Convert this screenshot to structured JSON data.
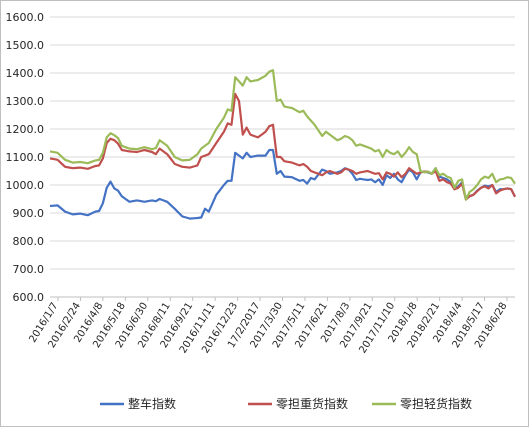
{
  "chart_data": {
    "type": "line",
    "title": "",
    "xlabel": "",
    "ylabel": "",
    "ylim": [
      600,
      1600
    ],
    "yticks": [
      "600.0",
      "700.0",
      "800.0",
      "900.0",
      "1000.0",
      "1100.0",
      "1200.0",
      "1300.0",
      "1400.0",
      "1500.0",
      "1600.0"
    ],
    "grid": "horizontal",
    "legend_position": "bottom",
    "x_tick_labels": [
      "2016/1/7",
      "2016/2/24",
      "2016/4/8",
      "2016/5/18",
      "2016/6/30",
      "2016/8/11",
      "2016/9/21",
      "2016/11/11",
      "2016/12/23",
      "17/2/2017",
      "2017/3/30",
      "2017/5/11",
      "2017/6/21",
      "2017/8/3",
      "2017/9/21",
      "2017/11/10",
      "2018/1/8",
      "2018/2/21",
      "2018/4/4",
      "2018/5/17",
      "2018/6/28"
    ],
    "n_points": 124,
    "series": [
      {
        "name": "整车指数",
        "color": "#4472c4",
        "anchors": [
          [
            0,
            925
          ],
          [
            2,
            927
          ],
          [
            4,
            905
          ],
          [
            6,
            895
          ],
          [
            8,
            898
          ],
          [
            10,
            892
          ],
          [
            12,
            905
          ],
          [
            13,
            907
          ],
          [
            14,
            935
          ],
          [
            15,
            990
          ],
          [
            16,
            1012
          ],
          [
            17,
            988
          ],
          [
            18,
            980
          ],
          [
            19,
            960
          ],
          [
            20,
            950
          ],
          [
            21,
            940
          ],
          [
            23,
            945
          ],
          [
            25,
            940
          ],
          [
            27,
            945
          ],
          [
            28,
            942
          ],
          [
            29,
            950
          ],
          [
            31,
            940
          ],
          [
            33,
            915
          ],
          [
            35,
            888
          ],
          [
            37,
            880
          ],
          [
            39,
            882
          ],
          [
            40,
            884
          ],
          [
            41,
            915
          ],
          [
            42,
            905
          ],
          [
            44,
            965
          ],
          [
            46,
            1000
          ],
          [
            47,
            1015
          ],
          [
            48,
            1015
          ],
          [
            49,
            1115
          ],
          [
            50,
            1105
          ],
          [
            51,
            1095
          ],
          [
            52,
            1115
          ],
          [
            53,
            1100
          ],
          [
            55,
            1105
          ],
          [
            57,
            1105
          ],
          [
            58,
            1125
          ],
          [
            59,
            1125
          ],
          [
            60,
            1040
          ],
          [
            61,
            1050
          ],
          [
            62,
            1030
          ],
          [
            64,
            1028
          ],
          [
            66,
            1015
          ],
          [
            67,
            1018
          ],
          [
            68,
            1005
          ],
          [
            69,
            1025
          ],
          [
            70,
            1020
          ],
          [
            72,
            1055
          ],
          [
            73,
            1050
          ],
          [
            74,
            1040
          ],
          [
            76,
            1045
          ],
          [
            77,
            1050
          ],
          [
            78,
            1060
          ],
          [
            79,
            1055
          ],
          [
            80,
            1040
          ],
          [
            81,
            1018
          ],
          [
            82,
            1022
          ],
          [
            84,
            1018
          ],
          [
            85,
            1020
          ],
          [
            86,
            1010
          ],
          [
            87,
            1020
          ],
          [
            88,
            1000
          ],
          [
            89,
            1035
          ],
          [
            90,
            1025
          ],
          [
            91,
            1040
          ],
          [
            92,
            1020
          ],
          [
            93,
            1010
          ],
          [
            94,
            1035
          ],
          [
            95,
            1055
          ],
          [
            96,
            1045
          ],
          [
            97,
            1020
          ],
          [
            98,
            1045
          ],
          [
            99,
            1048
          ],
          [
            100,
            1045
          ],
          [
            101,
            1040
          ],
          [
            102,
            1060
          ],
          [
            103,
            1030
          ],
          [
            104,
            1025
          ],
          [
            105,
            1020
          ],
          [
            106,
            1010
          ],
          [
            107,
            985
          ],
          [
            108,
            995
          ],
          [
            109,
            1010
          ],
          [
            110,
            950
          ],
          [
            111,
            960
          ],
          [
            112,
            965
          ],
          [
            113,
            980
          ],
          [
            114,
            990
          ],
          [
            115,
            998
          ],
          [
            116,
            995
          ],
          [
            117,
            1000
          ],
          [
            118,
            975
          ],
          [
            119,
            985
          ],
          [
            120,
            985
          ],
          [
            121,
            988
          ],
          [
            122,
            985
          ],
          [
            123,
            958
          ]
        ]
      },
      {
        "name": "零担重货指数",
        "color": "#c0504d",
        "anchors": [
          [
            0,
            1095
          ],
          [
            2,
            1090
          ],
          [
            4,
            1065
          ],
          [
            6,
            1060
          ],
          [
            8,
            1062
          ],
          [
            10,
            1058
          ],
          [
            12,
            1068
          ],
          [
            13,
            1070
          ],
          [
            14,
            1095
          ],
          [
            15,
            1150
          ],
          [
            16,
            1165
          ],
          [
            17,
            1160
          ],
          [
            18,
            1148
          ],
          [
            19,
            1125
          ],
          [
            21,
            1120
          ],
          [
            23,
            1118
          ],
          [
            25,
            1125
          ],
          [
            27,
            1118
          ],
          [
            28,
            1110
          ],
          [
            29,
            1130
          ],
          [
            31,
            1110
          ],
          [
            33,
            1075
          ],
          [
            35,
            1065
          ],
          [
            37,
            1062
          ],
          [
            39,
            1070
          ],
          [
            40,
            1100
          ],
          [
            42,
            1110
          ],
          [
            44,
            1150
          ],
          [
            46,
            1190
          ],
          [
            47,
            1220
          ],
          [
            48,
            1215
          ],
          [
            49,
            1325
          ],
          [
            50,
            1300
          ],
          [
            51,
            1180
          ],
          [
            52,
            1205
          ],
          [
            53,
            1180
          ],
          [
            55,
            1170
          ],
          [
            57,
            1190
          ],
          [
            58,
            1210
          ],
          [
            59,
            1215
          ],
          [
            60,
            1100
          ],
          [
            61,
            1100
          ],
          [
            62,
            1085
          ],
          [
            64,
            1080
          ],
          [
            66,
            1070
          ],
          [
            67,
            1075
          ],
          [
            68,
            1065
          ],
          [
            69,
            1050
          ],
          [
            70,
            1045
          ],
          [
            72,
            1035
          ],
          [
            73,
            1045
          ],
          [
            74,
            1050
          ],
          [
            76,
            1040
          ],
          [
            77,
            1045
          ],
          [
            78,
            1058
          ],
          [
            79,
            1055
          ],
          [
            80,
            1050
          ],
          [
            81,
            1040
          ],
          [
            82,
            1045
          ],
          [
            84,
            1050
          ],
          [
            85,
            1045
          ],
          [
            86,
            1040
          ],
          [
            87,
            1042
          ],
          [
            88,
            1020
          ],
          [
            89,
            1045
          ],
          [
            90,
            1040
          ],
          [
            91,
            1030
          ],
          [
            92,
            1045
          ],
          [
            93,
            1028
          ],
          [
            94,
            1040
          ],
          [
            95,
            1060
          ],
          [
            96,
            1050
          ],
          [
            97,
            1040
          ],
          [
            98,
            1045
          ],
          [
            99,
            1048
          ],
          [
            100,
            1048
          ],
          [
            101,
            1040
          ],
          [
            102,
            1050
          ],
          [
            103,
            1015
          ],
          [
            104,
            1020
          ],
          [
            105,
            1010
          ],
          [
            106,
            1005
          ],
          [
            107,
            985
          ],
          [
            108,
            990
          ],
          [
            109,
            1005
          ],
          [
            110,
            948
          ],
          [
            111,
            960
          ],
          [
            112,
            965
          ],
          [
            113,
            978
          ],
          [
            114,
            990
          ],
          [
            115,
            995
          ],
          [
            116,
            988
          ],
          [
            117,
            1000
          ],
          [
            118,
            970
          ],
          [
            119,
            980
          ],
          [
            120,
            985
          ],
          [
            121,
            988
          ],
          [
            122,
            985
          ],
          [
            123,
            958
          ]
        ]
      },
      {
        "name": "零担轻货指数",
        "color": "#9bbb59",
        "anchors": [
          [
            0,
            1120
          ],
          [
            2,
            1115
          ],
          [
            4,
            1090
          ],
          [
            6,
            1080
          ],
          [
            8,
            1082
          ],
          [
            10,
            1078
          ],
          [
            12,
            1088
          ],
          [
            13,
            1090
          ],
          [
            14,
            1115
          ],
          [
            15,
            1170
          ],
          [
            16,
            1185
          ],
          [
            17,
            1178
          ],
          [
            18,
            1168
          ],
          [
            19,
            1140
          ],
          [
            21,
            1130
          ],
          [
            23,
            1128
          ],
          [
            25,
            1135
          ],
          [
            27,
            1128
          ],
          [
            28,
            1132
          ],
          [
            29,
            1160
          ],
          [
            31,
            1140
          ],
          [
            33,
            1100
          ],
          [
            35,
            1088
          ],
          [
            37,
            1090
          ],
          [
            39,
            1110
          ],
          [
            40,
            1130
          ],
          [
            42,
            1150
          ],
          [
            44,
            1200
          ],
          [
            46,
            1240
          ],
          [
            47,
            1270
          ],
          [
            48,
            1265
          ],
          [
            49,
            1385
          ],
          [
            50,
            1370
          ],
          [
            51,
            1355
          ],
          [
            52,
            1385
          ],
          [
            53,
            1370
          ],
          [
            55,
            1375
          ],
          [
            57,
            1390
          ],
          [
            58,
            1405
          ],
          [
            59,
            1410
          ],
          [
            60,
            1300
          ],
          [
            61,
            1305
          ],
          [
            62,
            1280
          ],
          [
            64,
            1275
          ],
          [
            66,
            1260
          ],
          [
            67,
            1265
          ],
          [
            68,
            1245
          ],
          [
            69,
            1230
          ],
          [
            70,
            1215
          ],
          [
            72,
            1175
          ],
          [
            73,
            1190
          ],
          [
            74,
            1180
          ],
          [
            76,
            1160
          ],
          [
            77,
            1165
          ],
          [
            78,
            1175
          ],
          [
            79,
            1170
          ],
          [
            80,
            1160
          ],
          [
            81,
            1140
          ],
          [
            82,
            1145
          ],
          [
            84,
            1135
          ],
          [
            85,
            1130
          ],
          [
            86,
            1120
          ],
          [
            87,
            1125
          ],
          [
            88,
            1100
          ],
          [
            89,
            1125
          ],
          [
            90,
            1115
          ],
          [
            91,
            1110
          ],
          [
            92,
            1120
          ],
          [
            93,
            1100
          ],
          [
            94,
            1115
          ],
          [
            95,
            1135
          ],
          [
            96,
            1118
          ],
          [
            97,
            1110
          ],
          [
            98,
            1050
          ],
          [
            99,
            1045
          ],
          [
            100,
            1048
          ],
          [
            101,
            1040
          ],
          [
            102,
            1060
          ],
          [
            103,
            1035
          ],
          [
            104,
            1040
          ],
          [
            105,
            1030
          ],
          [
            106,
            1025
          ],
          [
            107,
            990
          ],
          [
            108,
            1015
          ],
          [
            109,
            1020
          ],
          [
            110,
            948
          ],
          [
            111,
            975
          ],
          [
            112,
            985
          ],
          [
            113,
            1000
          ],
          [
            114,
            1020
          ],
          [
            115,
            1030
          ],
          [
            116,
            1025
          ],
          [
            117,
            1040
          ],
          [
            118,
            1010
          ],
          [
            119,
            1020
          ],
          [
            120,
            1022
          ],
          [
            121,
            1028
          ],
          [
            122,
            1025
          ],
          [
            123,
            1005
          ]
        ]
      }
    ]
  }
}
